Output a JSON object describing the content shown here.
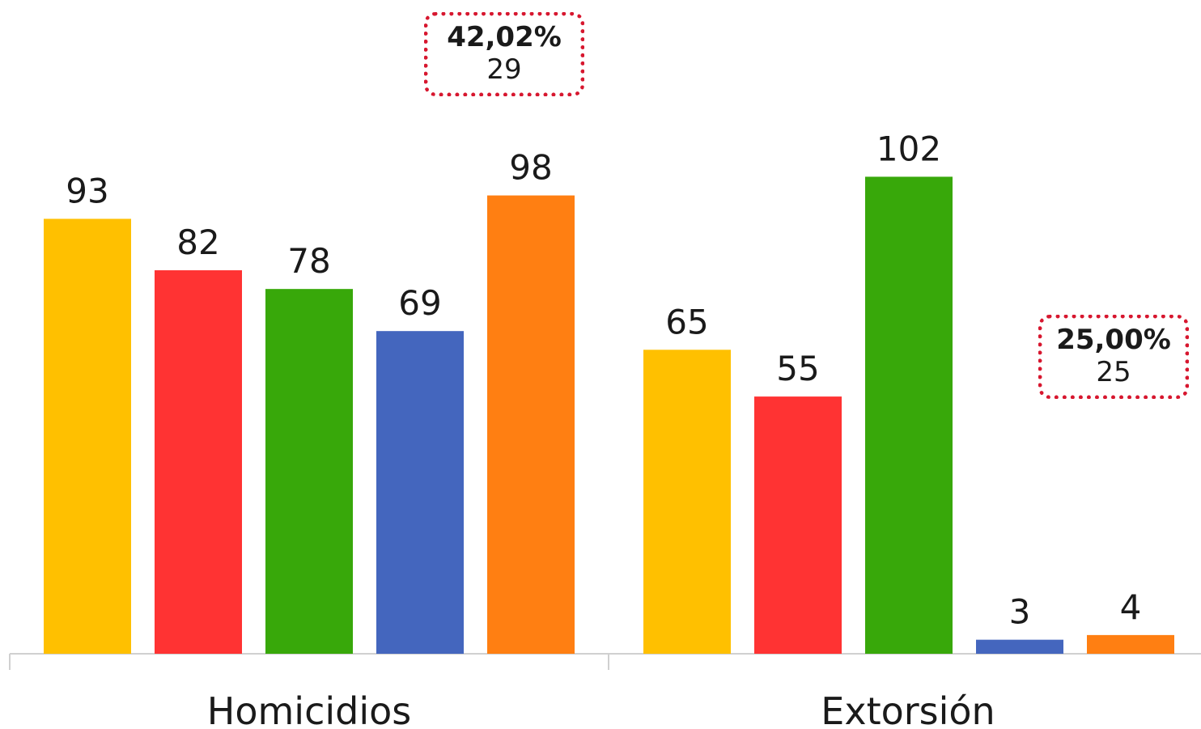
{
  "chart_data": {
    "type": "bar",
    "categories": [
      "Homicidios",
      "Extorsión"
    ],
    "series": [
      {
        "values": [
          93,
          65
        ],
        "color": "#FFC000"
      },
      {
        "values": [
          82,
          55
        ],
        "color": "#FF3333"
      },
      {
        "values": [
          78,
          102
        ],
        "color": "#38A80A"
      },
      {
        "values": [
          69,
          3
        ],
        "color": "#4466BE"
      },
      {
        "values": [
          98,
          4
        ],
        "color": "#FF7F12"
      }
    ],
    "annotations": [
      {
        "category": "Homicidios",
        "percent": "42,02%",
        "value": "29"
      },
      {
        "category": "Extorsión",
        "percent": "25,00%",
        "value": "25"
      }
    ],
    "ylim": [
      0,
      102
    ],
    "grid": false,
    "legend": "none",
    "callout_border_color": "#D7172F"
  }
}
